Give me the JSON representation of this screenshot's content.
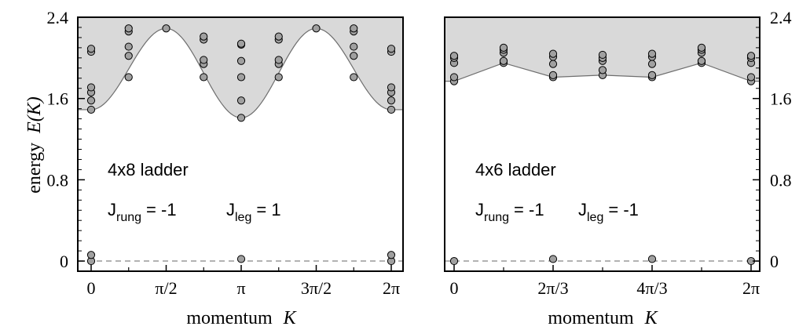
{
  "chart_data": [
    {
      "type": "scatter",
      "panel": "left",
      "title": "",
      "annotations": {
        "line1": "4x8 ladder",
        "j1": "J",
        "j1_sub": "rung",
        "j1_eq": "= -1",
        "j2": "J",
        "j2_sub": "leg",
        "j2_eq": "= 1"
      },
      "xlabel_word": "momentum",
      "xlabel_var": "K",
      "ylabel_word": "energy",
      "ylabel_var": "E(K)",
      "xlim": [
        0,
        6.2832
      ],
      "ylim": [
        -0.1,
        2.4
      ],
      "x_ticks": [
        0,
        1.5708,
        3.1416,
        4.7124,
        6.2832
      ],
      "x_tick_labels": [
        "0",
        "π/2",
        "π",
        "3π/2",
        "2π"
      ],
      "y_ticks": [
        0,
        0.8,
        1.6,
        2.4
      ],
      "y_tick_labels": [
        "0",
        "0.8",
        "1.6",
        "2.4"
      ],
      "reference_line_y": 0,
      "continuum_lower_edge": [
        [
          0,
          1.49
        ],
        [
          1.5708,
          2.29
        ],
        [
          3.1416,
          1.41
        ],
        [
          4.7124,
          2.29
        ],
        [
          6.2832,
          1.49
        ]
      ],
      "points": {
        "x": [
          0,
          0,
          0,
          0,
          0,
          0,
          0,
          0,
          0.7854,
          0.7854,
          0.7854,
          0.7854,
          0.7854,
          1.5708,
          2.3562,
          2.3562,
          2.3562,
          2.3562,
          2.3562,
          3.1416,
          3.1416,
          3.1416,
          3.1416,
          3.1416,
          3.1416,
          3.1416,
          3.927,
          3.927,
          3.927,
          3.927,
          3.927,
          4.7124,
          5.4978,
          5.4978,
          5.4978,
          5.4978,
          5.4978,
          6.2832,
          6.2832,
          6.2832,
          6.2832,
          6.2832,
          6.2832,
          6.2832,
          6.2832
        ],
        "y": [
          0.0,
          0.06,
          1.49,
          1.58,
          1.66,
          1.71,
          2.06,
          2.09,
          1.81,
          2.02,
          2.11,
          2.26,
          2.29,
          2.29,
          1.81,
          1.94,
          1.98,
          2.18,
          2.21,
          0.02,
          1.41,
          1.58,
          1.81,
          1.97,
          2.13,
          2.14,
          1.81,
          1.94,
          1.98,
          2.18,
          2.21,
          2.29,
          1.81,
          2.02,
          2.11,
          2.26,
          2.29,
          0.0,
          0.06,
          1.49,
          1.58,
          1.66,
          1.71,
          2.06,
          2.09
        ]
      },
      "colors": {
        "continuum": "#d9d9d9",
        "points": "#a0a0a0",
        "edge": "#6e6e6e",
        "dashed": "#999999"
      }
    },
    {
      "type": "scatter",
      "panel": "right",
      "title": "",
      "annotations": {
        "line1": "4x6 ladder",
        "j1": "J",
        "j1_sub": "rung",
        "j1_eq": "= -1",
        "j2": "J",
        "j2_sub": "leg",
        "j2_eq": "= -1"
      },
      "xlabel_word": "momentum",
      "xlabel_var": "K",
      "xlim": [
        0,
        6.2832
      ],
      "ylim": [
        -0.1,
        2.4
      ],
      "x_ticks": [
        0,
        2.0944,
        4.1888,
        6.2832
      ],
      "x_tick_labels": [
        "0",
        "2π/3",
        "4π/3",
        "2π"
      ],
      "y_ticks": [
        0,
        0.8,
        1.6,
        2.4
      ],
      "y_tick_labels": [
        "0",
        "0.8",
        "1.6",
        "2.4"
      ],
      "reference_line_y": 0,
      "continuum_lower_edge": [
        [
          0,
          1.77
        ],
        [
          1.0472,
          1.95
        ],
        [
          2.0944,
          1.81
        ],
        [
          3.1416,
          1.83
        ],
        [
          4.1888,
          1.81
        ],
        [
          5.236,
          1.95
        ],
        [
          6.2832,
          1.77
        ]
      ],
      "points": {
        "x": [
          0,
          0,
          0,
          0,
          0,
          0,
          1.0472,
          1.0472,
          1.0472,
          1.0472,
          1.0472,
          2.0944,
          2.0944,
          2.0944,
          2.0944,
          2.0944,
          2.0944,
          3.1416,
          3.1416,
          3.1416,
          3.1416,
          3.1416,
          4.1888,
          4.1888,
          4.1888,
          4.1888,
          4.1888,
          4.1888,
          5.236,
          5.236,
          5.236,
          5.236,
          5.236,
          6.2832,
          6.2832,
          6.2832,
          6.2832,
          6.2832,
          6.2832
        ],
        "y": [
          0.0,
          1.77,
          1.81,
          1.95,
          2.0,
          2.02,
          1.95,
          1.97,
          2.05,
          2.08,
          2.1,
          0.02,
          1.81,
          1.83,
          1.94,
          2.01,
          2.04,
          1.83,
          1.88,
          1.97,
          2.0,
          2.03,
          0.02,
          1.81,
          1.83,
          1.94,
          2.01,
          2.04,
          1.95,
          1.97,
          2.05,
          2.08,
          2.1,
          0.0,
          1.77,
          1.81,
          1.95,
          2.0,
          2.02
        ]
      },
      "colors": {
        "continuum": "#d9d9d9",
        "points": "#a0a0a0",
        "edge": "#6e6e6e",
        "dashed": "#999999"
      }
    }
  ]
}
